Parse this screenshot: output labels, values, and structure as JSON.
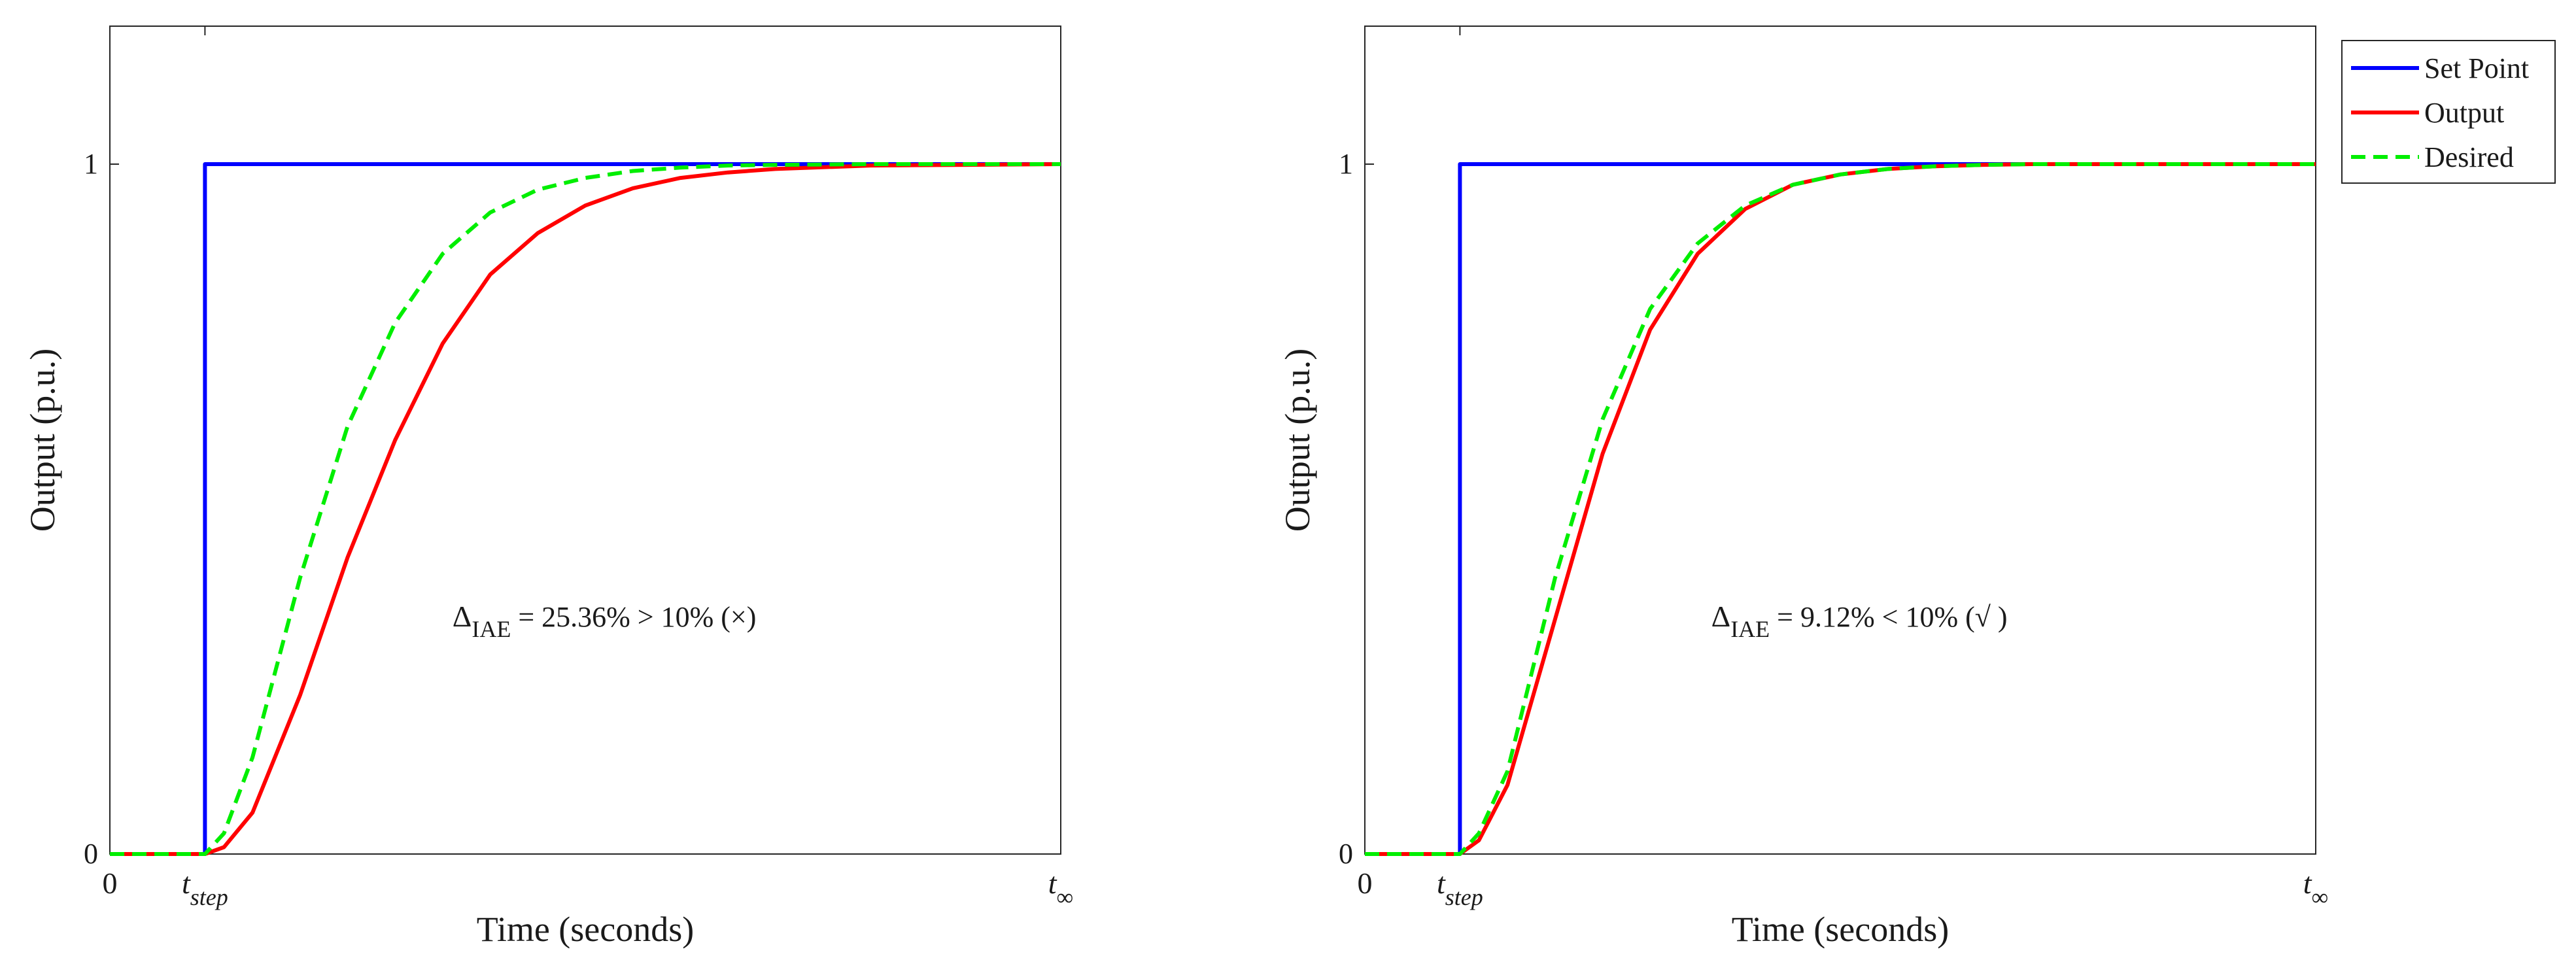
{
  "chart_data": [
    {
      "type": "line",
      "xlabel": "Time (seconds)",
      "ylabel": "Output (p.u.)",
      "xlim": [
        0,
        1
      ],
      "ylim": [
        0,
        1.2
      ],
      "xticks": [
        {
          "value": 0,
          "label": "0",
          "sub": ""
        },
        {
          "value": 0.1,
          "label": "t",
          "sub": "step"
        },
        {
          "value": 1,
          "label": "t",
          "sub": "∞"
        }
      ],
      "yticks": [
        {
          "value": 0,
          "label": "0"
        },
        {
          "value": 1,
          "label": "1"
        }
      ],
      "annotation": {
        "delta": "Δ",
        "sub": "IAE",
        "text": " = 25.36% > 10% (×)",
        "x": 0.52,
        "y": 0.33
      },
      "series": [
        {
          "name": "Set Point",
          "color": "#0000ff",
          "style": "solid",
          "x": [
            0,
            0.1,
            0.1,
            1
          ],
          "y": [
            0,
            0,
            1,
            1
          ]
        },
        {
          "name": "Output",
          "color": "#ff0000",
          "style": "solid",
          "x": [
            0,
            0.1,
            0.12,
            0.15,
            0.2,
            0.25,
            0.3,
            0.35,
            0.4,
            0.45,
            0.5,
            0.55,
            0.6,
            0.65,
            0.7,
            0.8,
            0.9,
            1
          ],
          "y": [
            0,
            0,
            0.01,
            0.06,
            0.23,
            0.43,
            0.6,
            0.74,
            0.84,
            0.9,
            0.94,
            0.965,
            0.98,
            0.988,
            0.993,
            0.998,
            0.999,
            1
          ]
        },
        {
          "name": "Desired",
          "color": "#00ee00",
          "style": "dashed",
          "x": [
            0,
            0.1,
            0.12,
            0.15,
            0.2,
            0.25,
            0.3,
            0.35,
            0.4,
            0.45,
            0.5,
            0.55,
            0.6,
            0.65,
            0.7,
            0.8,
            0.9,
            1
          ],
          "y": [
            0,
            0,
            0.03,
            0.14,
            0.4,
            0.62,
            0.77,
            0.87,
            0.93,
            0.963,
            0.98,
            0.99,
            0.995,
            0.998,
            0.999,
            1,
            1,
            1
          ]
        }
      ]
    },
    {
      "type": "line",
      "xlabel": "Time (seconds)",
      "ylabel": "Output (p.u.)",
      "xlim": [
        0,
        1
      ],
      "ylim": [
        0,
        1.2
      ],
      "xticks": [
        {
          "value": 0,
          "label": "0",
          "sub": ""
        },
        {
          "value": 0.1,
          "label": "t",
          "sub": "step"
        },
        {
          "value": 1,
          "label": "t",
          "sub": "∞"
        }
      ],
      "yticks": [
        {
          "value": 0,
          "label": "0"
        },
        {
          "value": 1,
          "label": "1"
        }
      ],
      "annotation": {
        "delta": "Δ",
        "sub": "IAE",
        "text": " = 9.12% < 10% (√ )",
        "x": 0.52,
        "y": 0.33
      },
      "series": [
        {
          "name": "Set Point",
          "color": "#0000ff",
          "style": "solid",
          "x": [
            0,
            0.1,
            0.1,
            1
          ],
          "y": [
            0,
            0,
            1,
            1
          ]
        },
        {
          "name": "Output",
          "color": "#ff0000",
          "style": "solid",
          "x": [
            0,
            0.1,
            0.12,
            0.15,
            0.2,
            0.25,
            0.3,
            0.35,
            0.4,
            0.45,
            0.5,
            0.55,
            0.6,
            0.65,
            0.7,
            0.8,
            0.9,
            1
          ],
          "y": [
            0,
            0,
            0.02,
            0.1,
            0.34,
            0.58,
            0.76,
            0.87,
            0.935,
            0.97,
            0.985,
            0.993,
            0.997,
            0.999,
            1,
            1,
            1,
            1
          ]
        },
        {
          "name": "Desired",
          "color": "#00ee00",
          "style": "dashed",
          "x": [
            0,
            0.1,
            0.12,
            0.15,
            0.2,
            0.25,
            0.3,
            0.35,
            0.4,
            0.45,
            0.5,
            0.55,
            0.6,
            0.65,
            0.7,
            0.8,
            0.9,
            1
          ],
          "y": [
            0,
            0,
            0.03,
            0.12,
            0.4,
            0.63,
            0.79,
            0.885,
            0.94,
            0.97,
            0.985,
            0.993,
            0.997,
            0.999,
            1,
            1,
            1,
            1
          ]
        }
      ]
    }
  ],
  "legend": {
    "placement": "outside-right-top",
    "items": [
      {
        "label": "Set Point",
        "color": "#0000ff",
        "style": "solid"
      },
      {
        "label": "Output",
        "color": "#ff0000",
        "style": "solid"
      },
      {
        "label": "Desired",
        "color": "#00ee00",
        "style": "dashed"
      }
    ]
  }
}
